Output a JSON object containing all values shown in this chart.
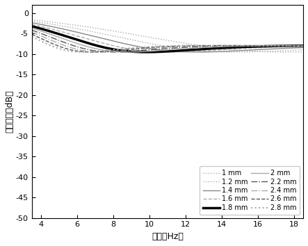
{
  "title": "",
  "xlabel": "频率（Hz）",
  "ylabel": "反射损失（dB）",
  "xlim": [
    3.5,
    18.5
  ],
  "ylim": [
    -50,
    2
  ],
  "xticks": [
    4,
    6,
    8,
    10,
    12,
    14,
    16,
    18
  ],
  "yticks": [
    0,
    -5,
    -10,
    -15,
    -20,
    -25,
    -30,
    -35,
    -40,
    -45,
    -50
  ],
  "freq_start": 3.5,
  "freq_end": 18.5,
  "background_color": "#ffffff",
  "series": [
    {
      "label": "1 mm",
      "thickness": 1.0,
      "color": "#aaaaaa",
      "linestyle": "dotted",
      "linewidth": 1.0
    },
    {
      "label": "1.2 mm",
      "thickness": 1.2,
      "color": "#aaaaaa",
      "linestyle": "dotted",
      "linewidth": 1.0
    },
    {
      "label": "1.4 mm",
      "thickness": 1.4,
      "color": "#888888",
      "linestyle": "solid",
      "linewidth": 1.0
    },
    {
      "label": "1.6 mm",
      "thickness": 1.6,
      "color": "#aaaaaa",
      "linestyle": "dashed",
      "linewidth": 1.0
    },
    {
      "label": "1.8 mm",
      "thickness": 1.8,
      "color": "#000000",
      "linestyle": "solid",
      "linewidth": 2.5
    },
    {
      "label": "2 mm",
      "thickness": 2.0,
      "color": "#aaaaaa",
      "linestyle": "solid",
      "linewidth": 1.0
    },
    {
      "label": "2.2 mm",
      "thickness": 2.2,
      "color": "#555555",
      "linestyle": "dashdot",
      "linewidth": 1.0
    },
    {
      "label": "2.4 mm",
      "thickness": 2.4,
      "color": "#aaaaaa",
      "linestyle": "dashdot",
      "linewidth": 1.0
    },
    {
      "label": "2.6 mm",
      "thickness": 2.6,
      "color": "#555555",
      "linestyle": "dashed",
      "linewidth": 1.0
    },
    {
      "label": "2.8 mm",
      "thickness": 2.8,
      "color": "#aaaaaa",
      "linestyle": "dotted",
      "linewidth": 1.5
    }
  ],
  "er_r": 7.5,
  "er_i": 8.5,
  "ur_r": 1.8,
  "ur_i": 1.2
}
